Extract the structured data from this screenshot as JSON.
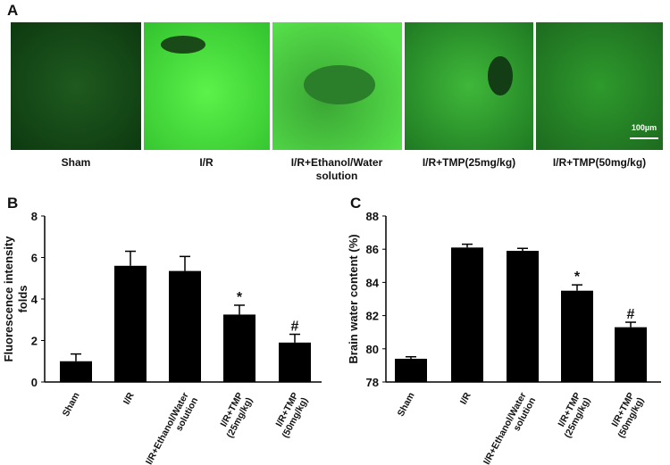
{
  "panel_a": {
    "label": "A",
    "captions": [
      "Sham",
      "I/R",
      "I/R+Ethanol/Water\nsolution",
      "I/R+TMP(25mg/kg)",
      "I/R+TMP(50mg/kg)"
    ],
    "scale_bar": "100µm"
  },
  "chart_data": [
    {
      "type": "bar",
      "panel_label": "B",
      "y_label": "Fluorescence intensity\nfolds",
      "categories": [
        "Sham",
        "I/R",
        "I/R+Ethanol/Water\nsolution",
        "I/R+TMP\n(25mg/kg)",
        "I/R+TMP\n(50mg/kg)"
      ],
      "values": [
        1.0,
        5.6,
        5.35,
        3.25,
        1.9
      ],
      "errors": [
        0.35,
        0.7,
        0.7,
        0.45,
        0.4
      ],
      "value_annotations": [
        null,
        null,
        null,
        "*",
        "#"
      ],
      "color": "#000000",
      "ylim": [
        0,
        8
      ],
      "yticks": [
        0,
        2,
        4,
        6,
        8
      ]
    },
    {
      "type": "bar",
      "panel_label": "C",
      "y_label": "Brain water content (%)",
      "categories": [
        "Sham",
        "I/R",
        "I/R+Ethanol/Water\nsolution",
        "I/R+TMP\n(25mg/kg)",
        "I/R+TMP\n(50mg/kg)"
      ],
      "values": [
        79.4,
        86.1,
        85.9,
        83.5,
        81.3
      ],
      "errors": [
        0.12,
        0.2,
        0.15,
        0.35,
        0.3
      ],
      "value_annotations": [
        null,
        null,
        null,
        "*",
        "#"
      ],
      "color": "#000000",
      "ylim": [
        78,
        88
      ],
      "yticks": [
        78,
        80,
        82,
        84,
        86,
        88
      ]
    }
  ]
}
